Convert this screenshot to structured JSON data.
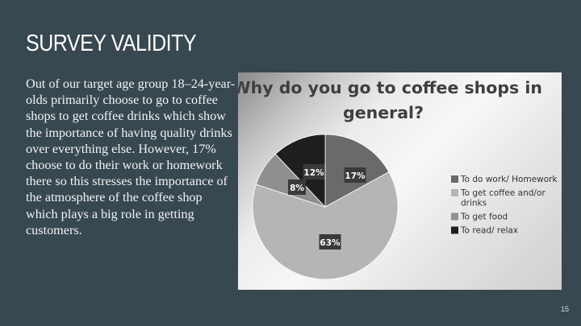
{
  "slide": {
    "title": "SURVEY VALIDITY",
    "body": "Out of our target age group 18–24-year-olds primarily choose to go to coffee shops to get coffee drinks which show the importance of having quality drinks over everything else. However, 17% choose to do their work or homework there so this stresses the importance of the atmosphere of the coffee shop which plays a big role in getting customers.",
    "page_number": "15"
  },
  "chart_data": {
    "type": "pie",
    "title_lines": [
      "Why do you go to coffee shops in",
      "general?"
    ],
    "slices": [
      {
        "name": "To do work/ Homework",
        "value": 17,
        "label": "17%",
        "color": "#6a6a6a"
      },
      {
        "name": "To get coffee and/or drinks",
        "value": 63,
        "label": "63%",
        "color": "#b5b5b5"
      },
      {
        "name": "To get food",
        "value": 8,
        "label": "8%",
        "color": "#8f8f8f"
      },
      {
        "name": "To read/ relax",
        "value": 12,
        "label": "12%",
        "color": "#1e1e1e"
      }
    ],
    "legend": [
      {
        "lines": [
          "To do work/ Homework"
        ],
        "color": "#6a6a6a"
      },
      {
        "lines": [
          "To get coffee and/or",
          "drinks"
        ],
        "color": "#b5b5b5"
      },
      {
        "lines": [
          "To get food"
        ],
        "color": "#8f8f8f"
      },
      {
        "lines": [
          "To read/ relax"
        ],
        "color": "#1e1e1e"
      }
    ],
    "legend_position": "right"
  }
}
